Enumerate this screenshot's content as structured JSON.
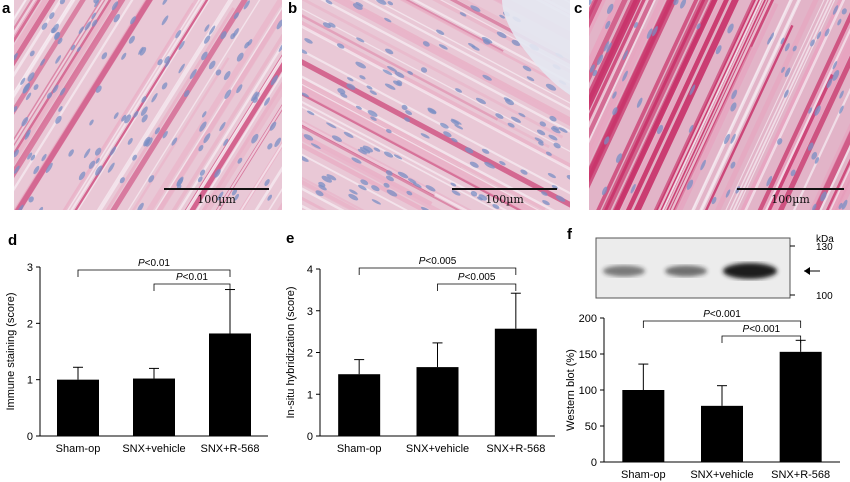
{
  "panels": {
    "micro": [
      {
        "letter": "a",
        "scale_label": "100µm",
        "tone": "light"
      },
      {
        "letter": "b",
        "scale_label": "100µm",
        "tone": "light"
      },
      {
        "letter": "c",
        "scale_label": "100µm",
        "tone": "dark"
      }
    ],
    "charts": [
      "d",
      "e",
      "f"
    ]
  },
  "blot": {
    "kda_unit": "kDa",
    "kda_ticks": [
      "130",
      "100"
    ],
    "band_intensity": [
      0.55,
      0.6,
      1.0
    ]
  },
  "colors": {
    "bar": "#000000",
    "stain_pink": "#d9557f",
    "stain_blue": "#7a8fc4",
    "tissue_bg": "#e9c8d6"
  },
  "chart_data": [
    {
      "id": "d",
      "type": "bar",
      "categories": [
        "Sham-op",
        "SNX+vehicle",
        "SNX+R-568"
      ],
      "values": [
        1.0,
        1.02,
        1.82
      ],
      "error_plus": [
        0.22,
        0.18,
        0.78
      ],
      "ylabel": "Immune staining (score)",
      "xlabel": "",
      "ylim": [
        0,
        3
      ],
      "yticks": [
        "0",
        "1",
        "2",
        "3"
      ],
      "significance": [
        {
          "from": 0,
          "to": 2,
          "label": "P<0.01"
        },
        {
          "from": 1,
          "to": 2,
          "label": "P<0.01"
        }
      ]
    },
    {
      "id": "e",
      "type": "bar",
      "categories": [
        "Sham-op",
        "SNX+vehicle",
        "SNX+R-568"
      ],
      "values": [
        1.48,
        1.65,
        2.57
      ],
      "error_plus": [
        0.35,
        0.58,
        0.85
      ],
      "ylabel": "In-situ hybridization (score)",
      "xlabel": "",
      "ylim": [
        0,
        4
      ],
      "yticks": [
        "0",
        "1",
        "2",
        "3",
        "4"
      ],
      "significance": [
        {
          "from": 0,
          "to": 2,
          "label": "P<0.005"
        },
        {
          "from": 1,
          "to": 2,
          "label": "P<0.005"
        }
      ]
    },
    {
      "id": "f",
      "type": "bar",
      "categories": [
        "Sham-op",
        "SNX+vehicle",
        "SNX+R-568"
      ],
      "values": [
        100,
        78,
        153
      ],
      "error_plus": [
        36,
        28,
        16
      ],
      "ylabel": "Western blot (%)",
      "xlabel": "",
      "ylim": [
        0,
        200
      ],
      "yticks": [
        "0",
        "50",
        "100",
        "150",
        "200"
      ],
      "significance": [
        {
          "from": 0,
          "to": 2,
          "label": "P<0.001"
        },
        {
          "from": 1,
          "to": 2,
          "label": "P<0.001"
        }
      ]
    }
  ]
}
